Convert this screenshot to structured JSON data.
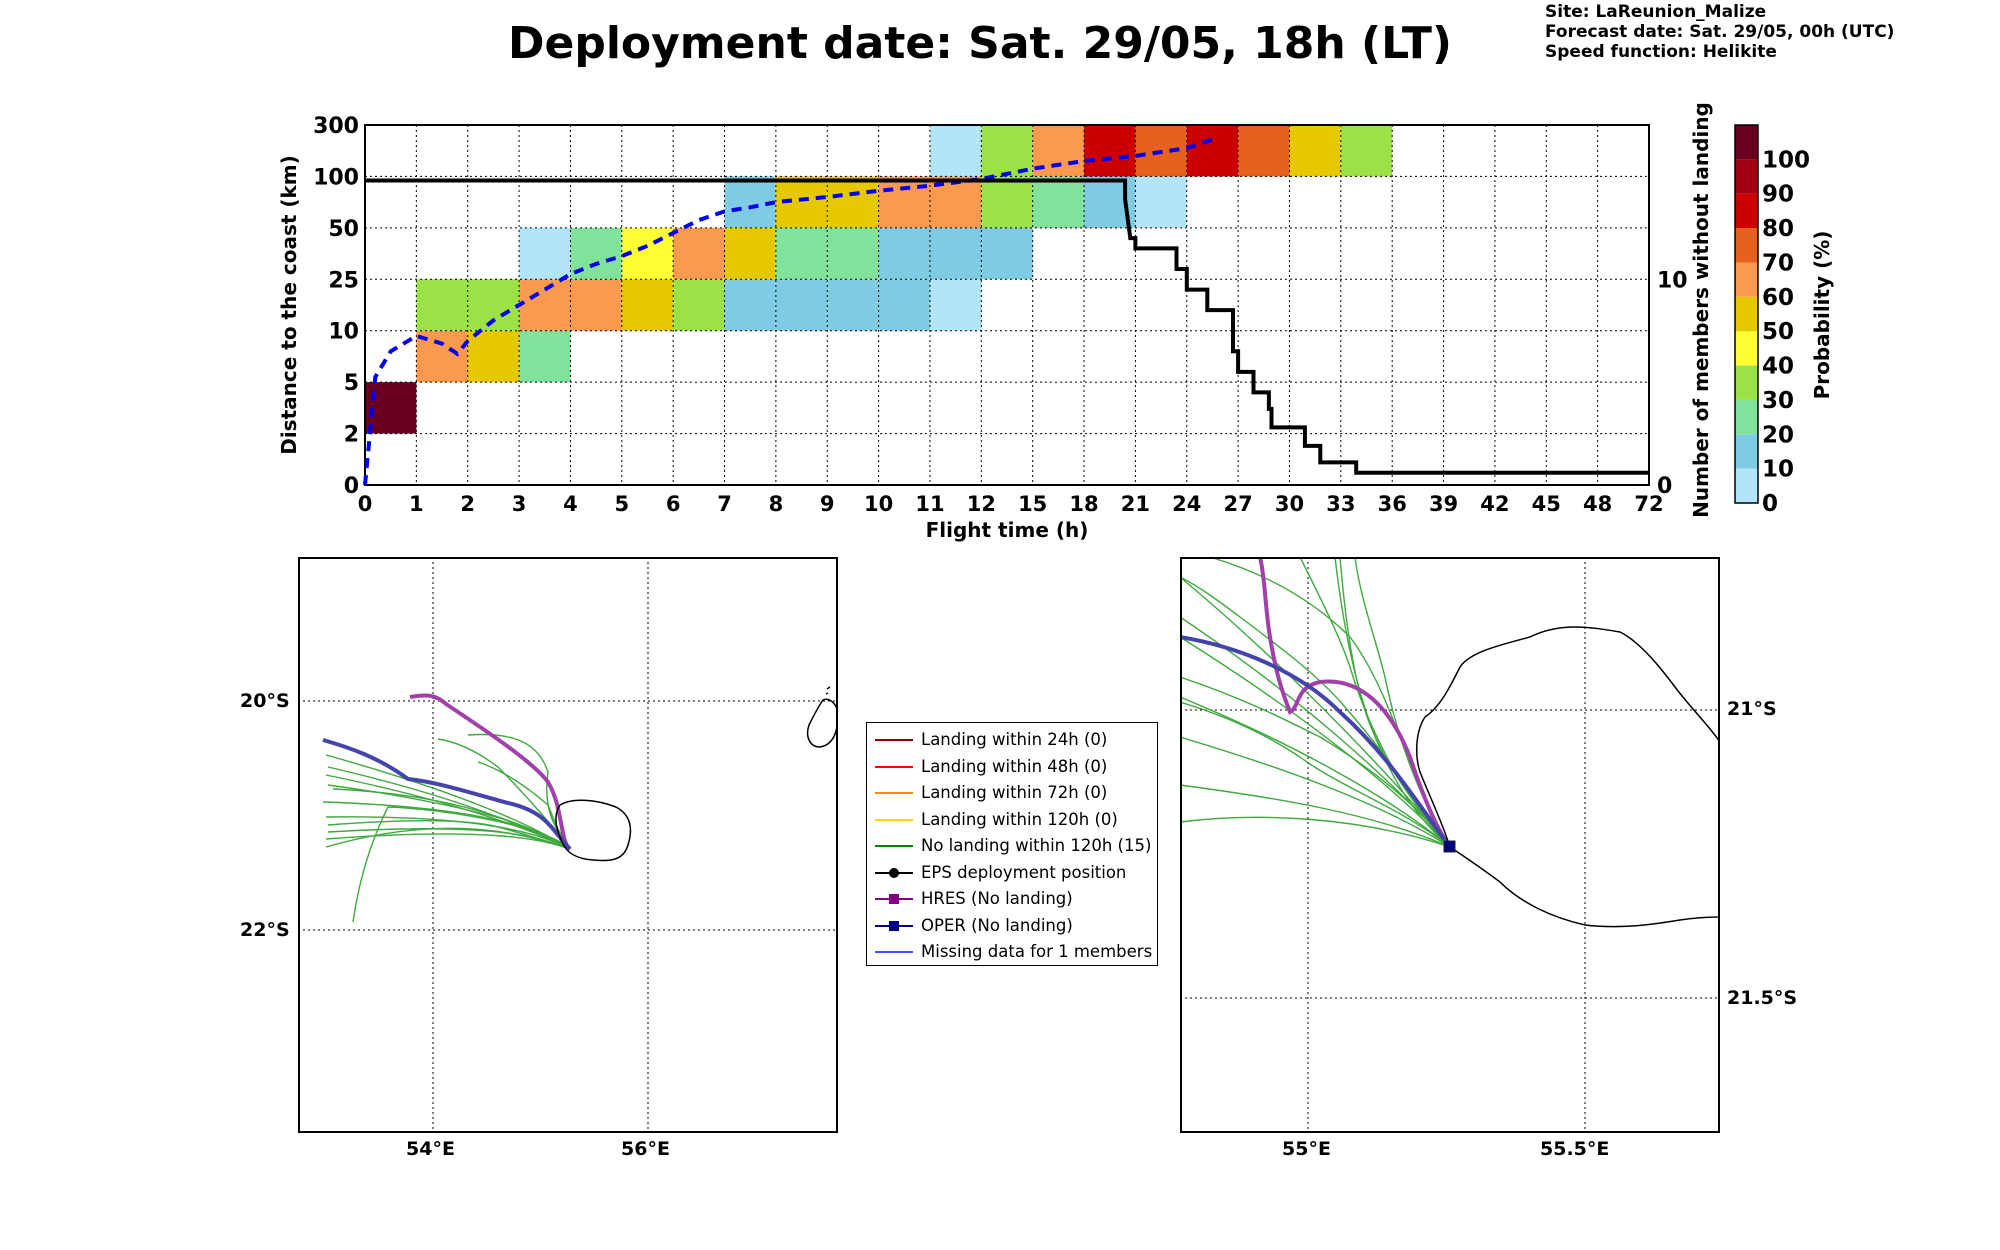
{
  "title": "Deployment date: Sat. 29/05, 18h (LT)",
  "info": {
    "site": "Site: LaReunion_Malize",
    "forecast": "Forecast date: Sat. 29/05, 00h (UTC)",
    "speed": "Speed function: Helikite"
  },
  "chart_data": [
    {
      "type": "heatmap",
      "xlabel": "Flight time (h)",
      "ylabel": "Distance to the coast (km)",
      "y2label": "Number of members without landing",
      "x_tick_labels": [
        "0",
        "1",
        "2",
        "3",
        "4",
        "5",
        "6",
        "7",
        "8",
        "9",
        "10",
        "11",
        "12",
        "15",
        "18",
        "21",
        "24",
        "27",
        "30",
        "33",
        "36",
        "39",
        "42",
        "45",
        "48",
        "72"
      ],
      "y_tick_labels": [
        "0",
        "2",
        "5",
        "10",
        "25",
        "50",
        "100",
        "300"
      ],
      "y2_ticks": [
        0,
        10
      ],
      "y2_range": [
        0,
        17.5
      ],
      "grid": true,
      "colorbar": {
        "label": "Probability (%)",
        "ticks": [
          "0",
          "10",
          "20",
          "30",
          "40",
          "50",
          "60",
          "70",
          "80",
          "90",
          "100"
        ],
        "colors": [
          "#b3e5fa",
          "#7ecbe3",
          "#80e29b",
          "#9be247",
          "#ffff33",
          "#e6c800",
          "#fb9a4e",
          "#e6621c",
          "#cc0000",
          "#a00010",
          "#690020"
        ]
      },
      "cells": [
        {
          "x": 0,
          "y": 1,
          "p": 100
        },
        {
          "x": 1,
          "y": 2,
          "p": 60
        },
        {
          "x": 2,
          "y": 2,
          "p": 50
        },
        {
          "x": 3,
          "y": 2,
          "p": 20
        },
        {
          "x": 1,
          "y": 3,
          "p": 30
        },
        {
          "x": 2,
          "y": 3,
          "p": 30
        },
        {
          "x": 3,
          "y": 3,
          "p": 60
        },
        {
          "x": 4,
          "y": 3,
          "p": 60
        },
        {
          "x": 5,
          "y": 3,
          "p": 50
        },
        {
          "x": 6,
          "y": 3,
          "p": 30
        },
        {
          "x": 7,
          "y": 3,
          "p": 10
        },
        {
          "x": 8,
          "y": 3,
          "p": 10
        },
        {
          "x": 9,
          "y": 3,
          "p": 10
        },
        {
          "x": 10,
          "y": 3,
          "p": 10
        },
        {
          "x": 11,
          "y": 3,
          "p": 0
        },
        {
          "x": 3,
          "y": 4,
          "p": 0
        },
        {
          "x": 4,
          "y": 4,
          "p": 20
        },
        {
          "x": 5,
          "y": 4,
          "p": 40
        },
        {
          "x": 6,
          "y": 4,
          "p": 60
        },
        {
          "x": 7,
          "y": 4,
          "p": 50
        },
        {
          "x": 8,
          "y": 4,
          "p": 20
        },
        {
          "x": 9,
          "y": 4,
          "p": 20
        },
        {
          "x": 10,
          "y": 4,
          "p": 10
        },
        {
          "x": 11,
          "y": 4,
          "p": 10
        },
        {
          "x": 12,
          "y": 4,
          "p": 10
        },
        {
          "x": 7,
          "y": 5,
          "p": 10
        },
        {
          "x": 8,
          "y": 5,
          "p": 50
        },
        {
          "x": 9,
          "y": 5,
          "p": 50
        },
        {
          "x": 10,
          "y": 5,
          "p": 60
        },
        {
          "x": 11,
          "y": 5,
          "p": 60
        },
        {
          "x": 12,
          "y": 5,
          "p": 30
        },
        {
          "x": 13,
          "y": 5,
          "p": 20
        },
        {
          "x": 14,
          "y": 5,
          "p": 10
        },
        {
          "x": 15,
          "y": 5,
          "p": 0
        },
        {
          "x": 11,
          "y": 6,
          "p": 0
        },
        {
          "x": 12,
          "y": 6,
          "p": 30
        },
        {
          "x": 13,
          "y": 6,
          "p": 60
        },
        {
          "x": 14,
          "y": 6,
          "p": 80
        },
        {
          "x": 15,
          "y": 6,
          "p": 70
        },
        {
          "x": 16,
          "y": 6,
          "p": 80
        },
        {
          "x": 17,
          "y": 6,
          "p": 70
        },
        {
          "x": 18,
          "y": 6,
          "p": 50
        },
        {
          "x": 19,
          "y": 6,
          "p": 30
        }
      ],
      "mean_distance_curve": [
        [
          0,
          0
        ],
        [
          0.2,
          2.1
        ],
        [
          0.5,
          2.6
        ],
        [
          1,
          2.9
        ],
        [
          1.5,
          2.75
        ],
        [
          1.8,
          2.55
        ],
        [
          2,
          2.8
        ],
        [
          2.5,
          3.2
        ],
        [
          3,
          3.5
        ],
        [
          3.5,
          3.8
        ],
        [
          4,
          4.1
        ],
        [
          4.5,
          4.3
        ],
        [
          5,
          4.45
        ],
        [
          5.5,
          4.65
        ],
        [
          6,
          4.9
        ],
        [
          6.5,
          5.15
        ],
        [
          7,
          5.32
        ],
        [
          7.5,
          5.4
        ],
        [
          8,
          5.5
        ],
        [
          9,
          5.6
        ],
        [
          10,
          5.72
        ],
        [
          11,
          5.82
        ],
        [
          12,
          5.95
        ],
        [
          13,
          6.15
        ],
        [
          14,
          6.3
        ],
        [
          15,
          6.4
        ],
        [
          16,
          6.55
        ],
        [
          16.5,
          6.72
        ]
      ],
      "members_without_landing_curve": [
        [
          0,
          14.8
        ],
        [
          14.8,
          14.8
        ],
        [
          14.8,
          13.9
        ],
        [
          14.9,
          12.0
        ],
        [
          15,
          12.0
        ],
        [
          15,
          11.5
        ],
        [
          15.8,
          11.5
        ],
        [
          15.8,
          10.5
        ],
        [
          16,
          10.5
        ],
        [
          16,
          9.5
        ],
        [
          16.4,
          9.5
        ],
        [
          16.4,
          8.5
        ],
        [
          16.9,
          8.5
        ],
        [
          16.9,
          6.5
        ],
        [
          17,
          6.5
        ],
        [
          17,
          5.5
        ],
        [
          17.3,
          5.5
        ],
        [
          17.3,
          4.5
        ],
        [
          17.6,
          4.5
        ],
        [
          17.6,
          3.7
        ],
        [
          17.65,
          3.7
        ],
        [
          17.65,
          2.8
        ],
        [
          18.3,
          2.8
        ],
        [
          18.3,
          1.9
        ],
        [
          18.6,
          1.9
        ],
        [
          18.6,
          1.1
        ],
        [
          19.3,
          1.1
        ],
        [
          19.3,
          0.6
        ],
        [
          25,
          0.6
        ]
      ]
    },
    {
      "type": "map",
      "lon_labels": [
        "54°E",
        "56°E"
      ],
      "lat_labels": [
        "20°S",
        "22°S"
      ],
      "extent": {
        "lon": [
          52.8,
          57.8
        ],
        "lat": [
          -18.8,
          -23.8
        ]
      }
    },
    {
      "type": "map",
      "lon_labels": [
        "55°E",
        "55.5°E"
      ],
      "lat_labels": [
        "21°S",
        "21.5°S"
      ],
      "extent": {
        "lon": [
          54.77,
          55.78
        ],
        "lat": [
          -20.75,
          -21.75
        ]
      }
    }
  ],
  "legend": [
    {
      "label": "Landing within 24h (0)",
      "color": "#8b0000",
      "marker": "none"
    },
    {
      "label": "Landing within 48h (0)",
      "color": "#ff0000",
      "marker": "none"
    },
    {
      "label": "Landing within 72h (0)",
      "color": "#ff8c00",
      "marker": "none"
    },
    {
      "label": "Landing within 120h (0)",
      "color": "#ffd700",
      "marker": "none"
    },
    {
      "label": "No landing within 120h (15)",
      "color": "#008000",
      "marker": "none"
    },
    {
      "label": "EPS deployment position",
      "color": "#000000",
      "marker": "circle"
    },
    {
      "label": "HRES (No landing)",
      "color": "#800080",
      "marker": "square"
    },
    {
      "label": "OPER (No landing)",
      "color": "#000080",
      "marker": "square"
    },
    {
      "label": "Missing data for 1 members",
      "color": "#4d4dff",
      "marker": "none"
    }
  ]
}
